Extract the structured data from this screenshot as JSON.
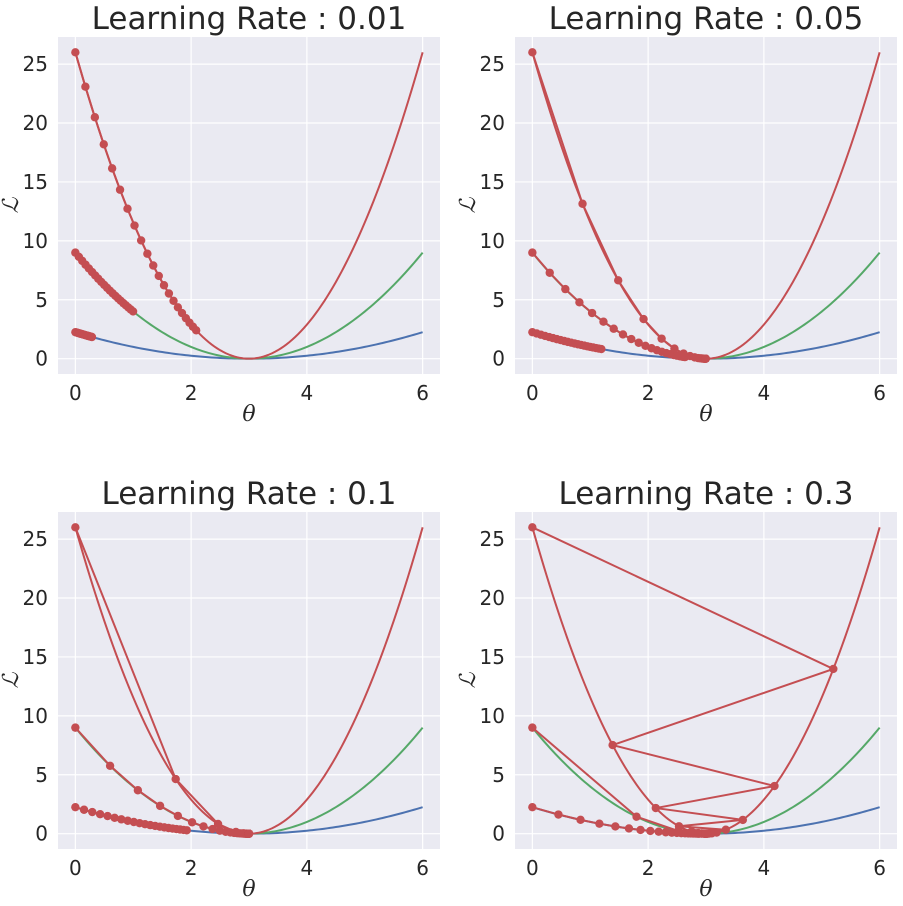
{
  "chart_data": [
    {
      "type": "line",
      "title": "Learning Rate : 0.01",
      "xlabel": "θ",
      "ylabel": "ℒ",
      "xlim": [
        -0.3,
        6.3
      ],
      "ylim": [
        -1.3,
        27.3
      ],
      "xticks": [
        "0",
        "2",
        "4",
        "6"
      ],
      "yticks": [
        "0",
        "5",
        "10",
        "15",
        "20",
        "25"
      ],
      "grid": true,
      "series": [
        {
          "curve": "0.25*(θ-3)^2",
          "color": "#4c72b0",
          "x_range": [
            0,
            6
          ]
        },
        {
          "curve": "(θ-3)^2",
          "color": "#55a868",
          "x_range": [
            0,
            6
          ]
        },
        {
          "curve": "(26/9)*(θ-3)^2",
          "color": "#c44e52",
          "x_range": [
            0,
            6
          ]
        }
      ],
      "gd_paths": [
        {
          "curve_a": 0.25,
          "learning_rate": 0.01,
          "start_x": 0,
          "steps": 20,
          "color": "#c44e52"
        },
        {
          "curve_a": 1,
          "learning_rate": 0.01,
          "start_x": 0,
          "steps": 20,
          "color": "#c44e52"
        },
        {
          "curve_a": 2.8889,
          "learning_rate": 0.01,
          "start_x": 0,
          "steps": 20,
          "color": "#c44e52"
        }
      ]
    },
    {
      "type": "line",
      "title": "Learning Rate : 0.05",
      "xlabel": "θ",
      "ylabel": "ℒ",
      "xlim": [
        -0.3,
        6.3
      ],
      "ylim": [
        -1.3,
        27.3
      ],
      "xticks": [
        "0",
        "2",
        "4",
        "6"
      ],
      "yticks": [
        "0",
        "5",
        "10",
        "15",
        "20",
        "25"
      ],
      "grid": true,
      "series": [
        {
          "curve": "0.25*(θ-3)^2",
          "color": "#4c72b0",
          "x_range": [
            0,
            6
          ]
        },
        {
          "curve": "(θ-3)^2",
          "color": "#55a868",
          "x_range": [
            0,
            6
          ]
        },
        {
          "curve": "(26/9)*(θ-3)^2",
          "color": "#c44e52",
          "x_range": [
            0,
            6
          ]
        }
      ],
      "gd_paths": [
        {
          "curve_a": 0.25,
          "learning_rate": 0.05,
          "start_x": 0,
          "steps": 20,
          "color": "#c44e52"
        },
        {
          "curve_a": 1,
          "learning_rate": 0.05,
          "start_x": 0,
          "steps": 20,
          "color": "#c44e52"
        },
        {
          "curve_a": 2.8889,
          "learning_rate": 0.05,
          "start_x": 0,
          "steps": 20,
          "color": "#c44e52"
        }
      ]
    },
    {
      "type": "line",
      "title": "Learning Rate : 0.1",
      "xlabel": "θ",
      "ylabel": "ℒ",
      "xlim": [
        -0.3,
        6.3
      ],
      "ylim": [
        -1.3,
        27.3
      ],
      "xticks": [
        "0",
        "2",
        "4",
        "6"
      ],
      "yticks": [
        "0",
        "5",
        "10",
        "15",
        "20",
        "25"
      ],
      "grid": true,
      "series": [
        {
          "curve": "0.25*(θ-3)^2",
          "color": "#4c72b0",
          "x_range": [
            0,
            6
          ]
        },
        {
          "curve": "(θ-3)^2",
          "color": "#55a868",
          "x_range": [
            0,
            6
          ]
        },
        {
          "curve": "(26/9)*(θ-3)^2",
          "color": "#c44e52",
          "x_range": [
            0,
            6
          ]
        }
      ],
      "gd_paths": [
        {
          "curve_a": 0.25,
          "learning_rate": 0.1,
          "start_x": 0,
          "steps": 20,
          "color": "#c44e52"
        },
        {
          "curve_a": 1,
          "learning_rate": 0.1,
          "start_x": 0,
          "steps": 20,
          "color": "#c44e52"
        },
        {
          "curve_a": 2.8889,
          "learning_rate": 0.1,
          "start_x": 0,
          "steps": 20,
          "color": "#c44e52"
        }
      ]
    },
    {
      "type": "line",
      "title": "Learning Rate : 0.3",
      "xlabel": "θ",
      "ylabel": "ℒ",
      "xlim": [
        -0.3,
        6.3
      ],
      "ylim": [
        -1.3,
        27.3
      ],
      "xticks": [
        "0",
        "2",
        "4",
        "6"
      ],
      "yticks": [
        "0",
        "5",
        "10",
        "15",
        "20",
        "25"
      ],
      "grid": true,
      "series": [
        {
          "curve": "0.25*(θ-3)^2",
          "color": "#4c72b0",
          "x_range": [
            0,
            6
          ]
        },
        {
          "curve": "(θ-3)^2",
          "color": "#55a868",
          "x_range": [
            0,
            6
          ]
        },
        {
          "curve": "(26/9)*(θ-3)^2",
          "color": "#c44e52",
          "x_range": [
            0,
            6
          ]
        }
      ],
      "gd_paths": [
        {
          "curve_a": 0.25,
          "learning_rate": 0.3,
          "start_x": 0,
          "steps": 20,
          "color": "#c44e52"
        },
        {
          "curve_a": 1,
          "learning_rate": 0.3,
          "start_x": 0,
          "steps": 20,
          "color": "#c44e52"
        },
        {
          "curve_a": 2.8889,
          "learning_rate": 0.3,
          "start_x": 0,
          "steps": 20,
          "color": "#c44e52"
        }
      ]
    }
  ],
  "style": {
    "axes_background": "#eaeaf2",
    "grid_color": "#ffffff",
    "text_color": "#262626"
  }
}
